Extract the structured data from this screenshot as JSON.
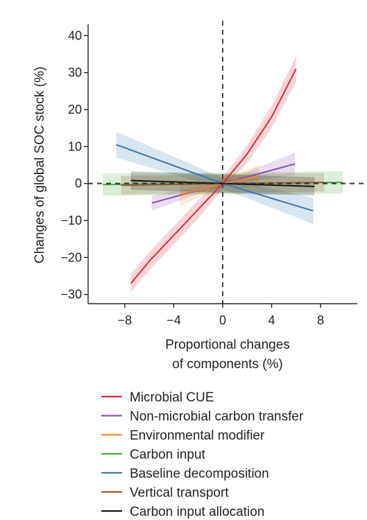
{
  "chart_data": {
    "type": "line",
    "xlabel": [
      "Proportional changes",
      "of components (%)"
    ],
    "ylabel": "Changes of global SOC stock (%)",
    "xlim": [
      -11,
      11
    ],
    "ylim": [
      -32.5,
      44
    ],
    "xticks": [
      -8,
      -4,
      0,
      4,
      8
    ],
    "xtick_labels": [
      "−8",
      "−4",
      "0",
      "4",
      "8"
    ],
    "yticks": [
      40,
      30,
      20,
      10,
      0,
      -10,
      -20,
      -30
    ],
    "ytick_labels": [
      "40",
      "30",
      "20",
      "10",
      "0",
      "−10",
      "−20",
      "−30"
    ],
    "reference_lines": {
      "x": 0,
      "y": 0,
      "style": "dashed"
    },
    "legend_position": "bottom",
    "series": [
      {
        "name": "Microbial CUE",
        "color": "#d62f3a",
        "x": [
          -7.5,
          -6,
          -4,
          -2,
          0,
          2,
          4,
          6
        ],
        "y": [
          -27,
          -21,
          -14,
          -7,
          0,
          8,
          18,
          31
        ],
        "band_width": [
          2.5,
          2.5,
          2.5,
          2.5,
          1.5,
          2.5,
          3,
          3.5
        ]
      },
      {
        "name": "Non-microbial carbon transfer",
        "color": "#8e4fb0",
        "x": [
          -5.8,
          0,
          5.9
        ],
        "y": [
          -5.3,
          0,
          5.3
        ],
        "band_width": [
          2,
          0.5,
          3
        ]
      },
      {
        "name": "Environmental modifier",
        "color": "#ef8a2c",
        "x": [
          -3.5,
          0,
          3
        ],
        "y": [
          -3,
          0,
          2
        ],
        "band_width": [
          3,
          1,
          3
        ]
      },
      {
        "name": "Carbon input",
        "color": "#45a845",
        "x": [
          -9.8,
          0,
          9.8
        ],
        "y": [
          -0.3,
          0,
          0.3
        ],
        "band_width": [
          3,
          3,
          3
        ]
      },
      {
        "name": "Baseline decomposition",
        "color": "#3b78b0",
        "x": [
          -8.7,
          0,
          7.4
        ],
        "y": [
          10.5,
          0,
          -7.4
        ],
        "band_width": [
          3.5,
          1.5,
          3.5
        ]
      },
      {
        "name": "Vertical transport",
        "color": "#9a5a2a",
        "x": [
          -8.3,
          0,
          8.3
        ],
        "y": [
          -0.5,
          0,
          0.3
        ],
        "band_width": [
          2.5,
          2.5,
          2.5
        ]
      },
      {
        "name": "Carbon input allocation",
        "color": "#111111",
        "x": [
          -7.5,
          0,
          7.5
        ],
        "y": [
          0.8,
          0,
          -0.8
        ],
        "band_width": [
          2.5,
          2.5,
          2.5
        ]
      }
    ]
  }
}
